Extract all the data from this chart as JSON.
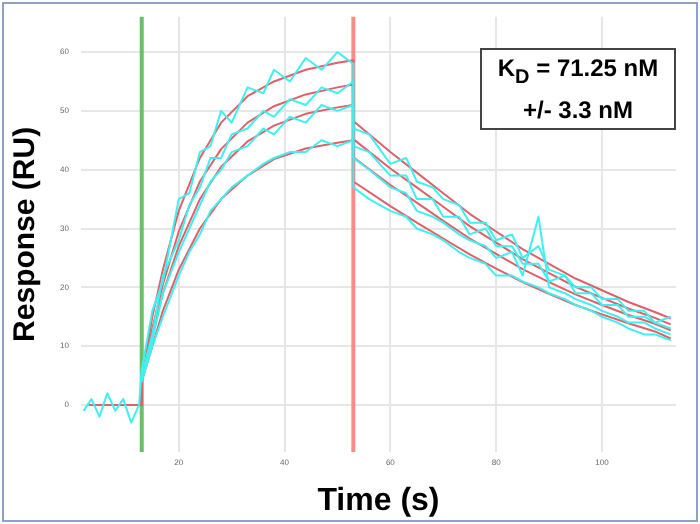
{
  "chart_data": {
    "type": "line",
    "xlabel": "Time (s)",
    "ylabel": "Response (RU)",
    "xlim": [
      1.5,
      114
    ],
    "ylim": [
      -8,
      66
    ],
    "xticks": [
      20,
      40,
      60,
      80,
      100
    ],
    "yticks": [
      0,
      10,
      20,
      30,
      40,
      50,
      60
    ],
    "grid": true,
    "legend": false,
    "marker": "none",
    "line_style": "solid",
    "annotations": [
      "K$_{D}$ = 71.25 nM",
      "+/- 3.3 nM"
    ],
    "ref_lines": [
      {
        "axis": "x",
        "value": 13,
        "color": "#6abf69"
      },
      {
        "axis": "x",
        "value": 53,
        "color": "#ff8a8a"
      }
    ],
    "series": [
      {
        "color": "#3ff0f0",
        "x": [
          2,
          3.5,
          5,
          6.5,
          8,
          9.5,
          11,
          12.5,
          13,
          15,
          17,
          20,
          22,
          24,
          26,
          28,
          30,
          33,
          36,
          38,
          41,
          44,
          47,
          50,
          53,
          53,
          56,
          60,
          63,
          65,
          68,
          70,
          73,
          75,
          78,
          80,
          83,
          85,
          88,
          90,
          93,
          95,
          98,
          100,
          103,
          105,
          108,
          110,
          113
        ],
        "values": [
          -1,
          1,
          -2,
          2,
          -1,
          1,
          -3,
          0,
          6,
          16,
          21,
          35,
          36,
          43,
          44,
          50,
          48,
          54,
          53,
          57,
          55,
          59,
          57,
          60,
          58,
          47,
          46,
          41,
          42,
          38,
          37,
          35,
          34,
          31,
          31,
          28,
          29,
          25,
          27,
          23,
          22,
          20,
          20,
          18,
          18,
          16,
          16,
          14,
          15
        ]
      },
      {
        "color": "#3ff0f0",
        "x": [
          13,
          15,
          17,
          20,
          22,
          24,
          26,
          28,
          30,
          33,
          36,
          38,
          41,
          44,
          47,
          50,
          53,
          53,
          56,
          60,
          63,
          65,
          68,
          70,
          73,
          75,
          78,
          80,
          83,
          85,
          88,
          90,
          93,
          95,
          98,
          100,
          103,
          105,
          108,
          110,
          113
        ],
        "values": [
          5,
          12,
          22,
          28,
          34,
          37,
          42,
          42,
          46,
          47,
          50,
          49,
          52,
          51,
          54,
          53,
          55,
          44,
          43,
          39,
          39,
          35,
          35,
          32,
          32,
          29,
          30,
          27,
          27,
          24,
          24,
          21,
          22,
          19,
          19,
          17,
          17,
          15,
          15,
          14,
          13
        ]
      },
      {
        "color": "#3ff0f0",
        "x": [
          13,
          15,
          17,
          20,
          22,
          24,
          26,
          28,
          30,
          33,
          36,
          38,
          41,
          44,
          47,
          50,
          53,
          53,
          56,
          60,
          63,
          65,
          68,
          70,
          73,
          75,
          78,
          80,
          83,
          85,
          88,
          90,
          93,
          95,
          98,
          100,
          103,
          105,
          108,
          110,
          113
        ],
        "values": [
          4,
          11,
          19,
          26,
          30,
          34,
          38,
          40,
          43,
          44,
          47,
          46,
          49,
          48,
          51,
          50,
          51,
          42,
          40,
          37,
          36,
          33,
          32,
          31,
          29,
          28,
          27,
          25,
          26,
          22,
          32,
          20,
          19,
          18,
          17,
          16,
          15,
          14,
          14,
          13,
          12
        ]
      },
      {
        "color": "#3ff0f0",
        "x": [
          13,
          15,
          17,
          20,
          22,
          24,
          26,
          28,
          30,
          33,
          36,
          38,
          41,
          44,
          47,
          50,
          53,
          53,
          56,
          60,
          63,
          65,
          68,
          70,
          73,
          75,
          78,
          80,
          83,
          85,
          88,
          90,
          93,
          95,
          98,
          100,
          103,
          105,
          108,
          110,
          113
        ],
        "values": [
          4,
          10,
          15,
          22,
          26,
          29,
          33,
          35,
          37,
          39,
          41,
          42,
          43,
          43,
          45,
          44,
          45,
          37,
          35,
          33,
          32,
          30,
          29,
          28,
          26,
          25,
          24,
          22,
          22,
          21,
          20,
          19,
          18,
          17,
          16,
          15,
          14,
          13,
          12,
          12,
          11
        ]
      },
      {
        "color": "#e0606a",
        "x": [
          3,
          13,
          13,
          15,
          17,
          20,
          24,
          28,
          33,
          38,
          44,
          50,
          53,
          53,
          60,
          65,
          70,
          75,
          80,
          85,
          90,
          95,
          100,
          105,
          110,
          113
        ],
        "values": [
          0,
          0,
          4,
          15,
          23,
          33,
          42,
          48,
          52.5,
          55,
          57,
          58.2,
          58.6,
          48.3,
          43,
          39.5,
          36,
          32.5,
          29.5,
          26.5,
          24,
          21.5,
          19.5,
          17.5,
          15.8,
          14.7
        ]
      },
      {
        "color": "#e0606a",
        "x": [
          3,
          13,
          13,
          15,
          17,
          20,
          24,
          28,
          33,
          38,
          44,
          50,
          53,
          53,
          60,
          65,
          70,
          75,
          80,
          85,
          90,
          95,
          100,
          105,
          110,
          113
        ],
        "values": [
          0,
          0,
          4,
          13,
          20.5,
          29.5,
          38,
          43.5,
          48,
          50.8,
          52.8,
          54,
          54.5,
          45.2,
          40.2,
          37,
          33.7,
          30.4,
          27.6,
          24.8,
          22.4,
          20.1,
          18.2,
          16.4,
          14.8,
          13.7
        ]
      },
      {
        "color": "#e0606a",
        "x": [
          3,
          13,
          13,
          15,
          17,
          20,
          24,
          28,
          33,
          38,
          44,
          50,
          53,
          53,
          60,
          65,
          70,
          75,
          80,
          85,
          90,
          95,
          100,
          105,
          110,
          113
        ],
        "values": [
          0,
          0,
          4,
          12,
          19,
          27,
          35,
          40.5,
          44.8,
          47.5,
          49.5,
          50.6,
          51,
          42.1,
          37.4,
          34.4,
          31.3,
          28.3,
          25.7,
          23.1,
          20.9,
          18.8,
          17,
          15.3,
          13.8,
          12.7
        ]
      },
      {
        "color": "#e0606a",
        "x": [
          3,
          13,
          13,
          15,
          17,
          20,
          24,
          28,
          33,
          38,
          44,
          50,
          53,
          53,
          60,
          65,
          70,
          75,
          80,
          85,
          90,
          95,
          100,
          105,
          110,
          113
        ],
        "values": [
          0,
          0,
          4,
          10,
          16,
          23,
          30,
          35,
          39,
          41.8,
          43.6,
          44.6,
          45,
          38,
          33.8,
          31,
          28.3,
          25.6,
          23.2,
          20.9,
          18.9,
          17,
          15.4,
          13.9,
          12.5,
          11.3
        ]
      }
    ]
  }
}
